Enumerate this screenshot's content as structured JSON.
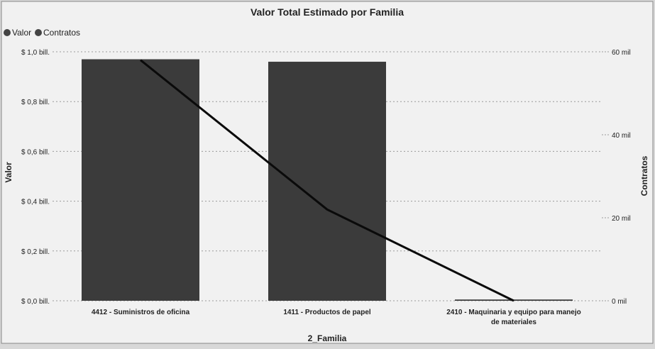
{
  "chart_data": {
    "type": "bar",
    "title": "Valor Total Estimado por Familia",
    "xlabel": "2_Familia",
    "ylabel": "Valor",
    "y2label": "Contratos",
    "legend": {
      "position": "top-left",
      "entries": [
        "Valor",
        "Contratos"
      ]
    },
    "categories": [
      [
        "4412 - Suministros de oficina"
      ],
      [
        "1411 - Productos de papel"
      ],
      [
        "2410 - Maquinaria y equipo para manejo",
        "de materiales"
      ]
    ],
    "series": [
      {
        "name": "Valor",
        "kind": "bar",
        "axis": "left",
        "values": [
          0.97,
          0.96,
          0.005
        ]
      },
      {
        "name": "Contratos",
        "kind": "line",
        "axis": "right",
        "values": [
          58000,
          22000,
          0
        ]
      }
    ],
    "ylim": [
      0,
      1.0
    ],
    "y2lim": [
      0,
      60000
    ],
    "yticks": [
      {
        "value": 0,
        "label": "$ 0,0 bill."
      },
      {
        "value": 0.2,
        "label": "$ 0,2 bill."
      },
      {
        "value": 0.4,
        "label": "$ 0,4 bill."
      },
      {
        "value": 0.6,
        "label": "$ 0,6 bill."
      },
      {
        "value": 0.8,
        "label": "$ 0,8 bill."
      },
      {
        "value": 1.0,
        "label": "$ 1,0 bill."
      }
    ],
    "y2ticks": [
      {
        "value": 0,
        "label": "0 mil"
      },
      {
        "value": 20000,
        "label": "20 mil"
      },
      {
        "value": 40000,
        "label": "40 mil"
      },
      {
        "value": 60000,
        "label": "60 mil"
      }
    ],
    "grid": true,
    "colors": {
      "bar": "#3b3b3b",
      "line": "#0a0a0a",
      "legend_dot": "#444444"
    }
  }
}
